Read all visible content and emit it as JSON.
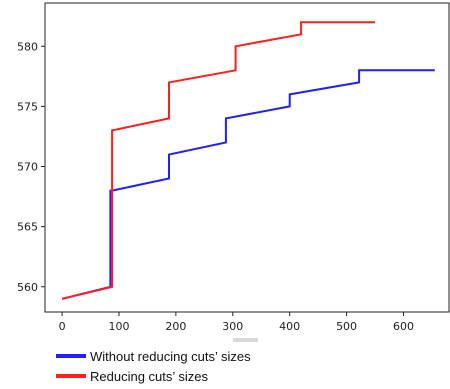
{
  "chart_data": {
    "type": "line",
    "title": "",
    "xlabel": "",
    "ylabel": "",
    "xlim": [
      -30,
      680
    ],
    "ylim": [
      557.9,
      583.6
    ],
    "xticks": [
      0,
      100,
      200,
      300,
      400,
      500,
      600
    ],
    "yticks": [
      560,
      565,
      570,
      575,
      580
    ],
    "x_tick_labels": [
      "0",
      "100",
      "200",
      "300",
      "400",
      "500",
      "600"
    ],
    "y_tick_labels": [
      "560",
      "565",
      "570",
      "575",
      "580"
    ],
    "grid": false,
    "legend_position": "bottom-left, below plot",
    "series": [
      {
        "name": "Without reducing cuts’ sizes",
        "color": "#1f1fff",
        "x": [
          0,
          85,
          85,
          88,
          88,
          188,
          188,
          288,
          288,
          400,
          400,
          522,
          522,
          655
        ],
        "y": [
          559,
          560,
          568,
          568,
          568,
          569,
          571,
          572,
          574,
          575,
          576,
          577,
          578,
          578
        ]
      },
      {
        "name": "Reducing cuts’ sizes",
        "color": "#ff1f1f",
        "x": [
          0,
          88,
          88,
          188,
          188,
          305,
          305,
          420,
          420,
          550
        ],
        "y": [
          559,
          560,
          573,
          574,
          577,
          578,
          580,
          581,
          582,
          582
        ]
      }
    ]
  },
  "ui": {
    "scrollbar_visible": true
  }
}
